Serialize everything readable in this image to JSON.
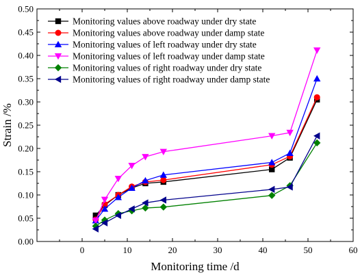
{
  "chart_data": {
    "type": "line",
    "xlabel": "Monitoring time /d",
    "ylabel": "Strain /%",
    "xlim": [
      -10,
      60
    ],
    "ylim": [
      0,
      0.5
    ],
    "xticks": [
      0,
      10,
      20,
      30,
      40,
      50,
      60
    ],
    "yticks": [
      0.0,
      0.05,
      0.1,
      0.15,
      0.2,
      0.25,
      0.3,
      0.35,
      0.4,
      0.45,
      0.5
    ],
    "ytick_labels": [
      "0.00",
      "0.05",
      "0.10",
      "0.15",
      "0.20",
      "0.25",
      "0.30",
      "0.35",
      "0.40",
      "0.45",
      "0.50"
    ],
    "grid": false,
    "legend_position": "top-left",
    "series": [
      {
        "name": "Monitoring values above roadway under dry state",
        "color": "#000000",
        "marker": "square",
        "x": [
          3,
          5,
          8,
          11,
          14,
          18,
          42,
          46,
          52
        ],
        "y": [
          0.056,
          0.078,
          0.1,
          0.115,
          0.125,
          0.128,
          0.155,
          0.18,
          0.305
        ]
      },
      {
        "name": "Monitoring values above roadway under damp state",
        "color": "#ff0000",
        "marker": "circle",
        "x": [
          3,
          5,
          8,
          11,
          14,
          18,
          42,
          46,
          52
        ],
        "y": [
          0.047,
          0.08,
          0.1,
          0.118,
          0.128,
          0.132,
          0.165,
          0.183,
          0.31
        ]
      },
      {
        "name": "Monitoring values of left roadway under dry state",
        "color": "#0000ff",
        "marker": "triangle-up",
        "x": [
          3,
          5,
          8,
          11,
          14,
          18,
          42,
          46,
          52
        ],
        "y": [
          0.045,
          0.07,
          0.095,
          0.115,
          0.131,
          0.143,
          0.17,
          0.19,
          0.35
        ]
      },
      {
        "name": "Monitoring values of left roadway under damp state",
        "color": "#ff00ff",
        "marker": "triangle-down",
        "x": [
          3,
          5,
          8,
          11,
          14,
          18,
          42,
          46,
          52
        ],
        "y": [
          0.045,
          0.09,
          0.135,
          0.163,
          0.182,
          0.193,
          0.227,
          0.234,
          0.411
        ]
      },
      {
        "name": "Monitoring values of right roadway under dry state",
        "color": "#008000",
        "marker": "diamond",
        "x": [
          3,
          5,
          8,
          11,
          14,
          18,
          42,
          46,
          52
        ],
        "y": [
          0.033,
          0.046,
          0.06,
          0.066,
          0.072,
          0.074,
          0.099,
          0.12,
          0.212
        ]
      },
      {
        "name": "Monitoring values of right roadway under damp state",
        "color": "#00008b",
        "marker": "triangle-left",
        "x": [
          3,
          5,
          8,
          11,
          14,
          18,
          42,
          46,
          52
        ],
        "y": [
          0.027,
          0.04,
          0.056,
          0.07,
          0.083,
          0.089,
          0.112,
          0.117,
          0.227
        ]
      }
    ]
  }
}
